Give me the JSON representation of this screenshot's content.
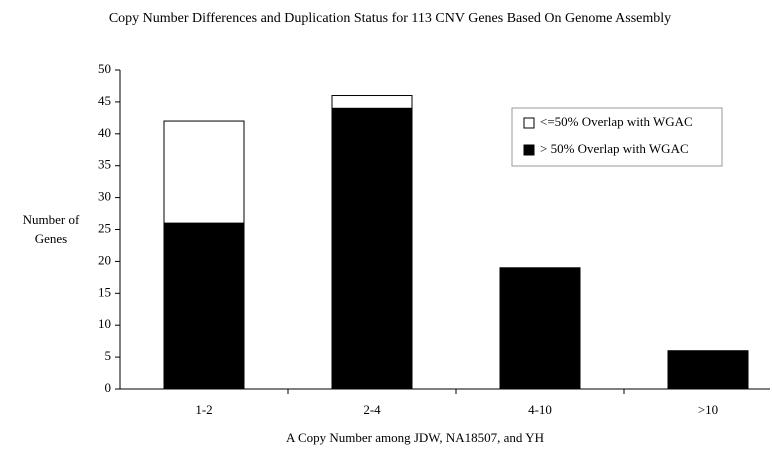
{
  "chart_data": {
    "type": "stacked_bar",
    "title": "Copy Number Differences and Duplication Status for 113 CNV Genes Based On Genome Assembly",
    "x_label": "A Copy Number among JDW, NA18507, and YH",
    "y_label": "Number of Genes",
    "categories": [
      "1-2",
      "2-4",
      "4-10",
      ">10"
    ],
    "series": [
      {
        "name": "> 50% Overlap with WGAC",
        "color": "#000000",
        "values": [
          26,
          44,
          19,
          6
        ]
      },
      {
        "name": "<=50% Overlap with WGAC",
        "color": "#ffffff",
        "values": [
          16,
          2,
          0,
          0
        ]
      }
    ],
    "ylim": [
      0,
      50
    ],
    "yticks": [
      0,
      5,
      10,
      15,
      20,
      25,
      30,
      35,
      40,
      45,
      50
    ],
    "legend": "upper-right"
  }
}
